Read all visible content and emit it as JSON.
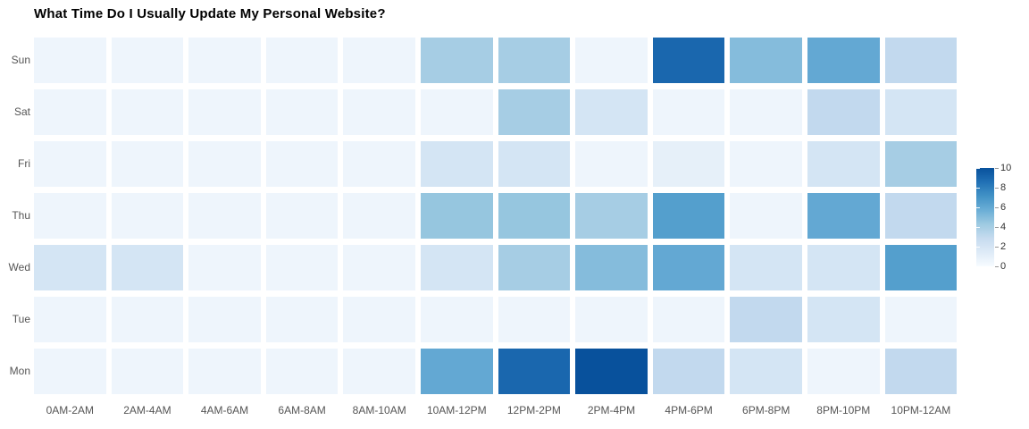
{
  "chart_data": {
    "type": "heatmap",
    "title": "What Time Do I Usually Update My Personal Website?",
    "x_categories": [
      "0AM-2AM",
      "2AM-4AM",
      "4AM-6AM",
      "6AM-8AM",
      "8AM-10AM",
      "10AM-12PM",
      "12PM-2PM",
      "2PM-4PM",
      "4PM-6PM",
      "6PM-8PM",
      "8PM-10PM",
      "10PM-12AM"
    ],
    "rows_top_to_bottom": [
      {
        "label": "Sun",
        "values": [
          0.5,
          0.5,
          0.5,
          0.5,
          0.5,
          4,
          4,
          0.5,
          9,
          5,
          6,
          3
        ]
      },
      {
        "label": "Sat",
        "values": [
          0.5,
          0.5,
          0.5,
          0.5,
          0.5,
          0.5,
          4,
          2,
          0.5,
          0.5,
          3,
          2
        ]
      },
      {
        "label": "Fri",
        "values": [
          0.5,
          0.5,
          0.5,
          0.5,
          0.5,
          2,
          2,
          0.5,
          1,
          0.5,
          2,
          4
        ]
      },
      {
        "label": "Thu",
        "values": [
          0.5,
          0.5,
          0.5,
          0.5,
          0.5,
          4.5,
          4.5,
          4,
          6.5,
          0.5,
          6,
          3
        ]
      },
      {
        "label": "Wed",
        "values": [
          2,
          2,
          0.5,
          0.5,
          0.5,
          2,
          4,
          5,
          6,
          2,
          2,
          6.5
        ]
      },
      {
        "label": "Tue",
        "values": [
          0.5,
          0.5,
          0.5,
          0.5,
          0.5,
          0.5,
          0.5,
          0.5,
          0.5,
          3,
          2,
          0.5
        ]
      },
      {
        "label": "Mon",
        "values": [
          0.5,
          0.5,
          0.5,
          0.5,
          0.5,
          6,
          9,
          10,
          3,
          2,
          0.5,
          3
        ]
      }
    ],
    "scale": {
      "min": 0,
      "max": 10,
      "tick_labels_top_to_bottom": [
        "10",
        "8",
        "6",
        "4",
        "2",
        "0"
      ]
    },
    "colormap_low_to_high": [
      "#f7fbff",
      "#deebf7",
      "#c6dbef",
      "#9ecae1",
      "#6baed6",
      "#4292c6",
      "#2171b5",
      "#08519c"
    ],
    "legend_position": "right",
    "grid_lines": "off",
    "cell_gap_color": "#ffffff"
  }
}
